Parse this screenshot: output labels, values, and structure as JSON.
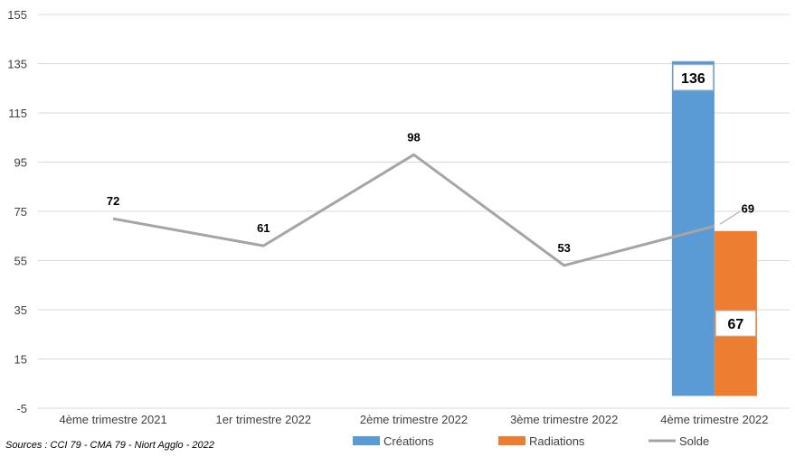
{
  "chart_data": {
    "type": "bar",
    "categories": [
      "4ème trimestre 2021",
      "1er trimestre 2022",
      "2ème trimestre 2022",
      "3ème trimestre 2022",
      "4ème trimestre 2022"
    ],
    "series": [
      {
        "name": "Créations",
        "kind": "bar",
        "color": "#5B9BD5",
        "values": [
          null,
          null,
          null,
          null,
          136
        ]
      },
      {
        "name": "Radiations",
        "kind": "bar",
        "color": "#ED7D31",
        "values": [
          null,
          null,
          null,
          null,
          67
        ]
      },
      {
        "name": "Solde",
        "kind": "line",
        "color": "#A5A5A5",
        "values": [
          72,
          61,
          98,
          53,
          69
        ]
      }
    ],
    "ylim": [
      -5,
      155
    ],
    "yticks": [
      -5,
      15,
      35,
      55,
      75,
      95,
      115,
      135,
      155
    ],
    "grid": true,
    "legend_position": "bottom"
  },
  "source": "Sources : CCI 79 - CMA 79 - Niort Agglo - 2022"
}
